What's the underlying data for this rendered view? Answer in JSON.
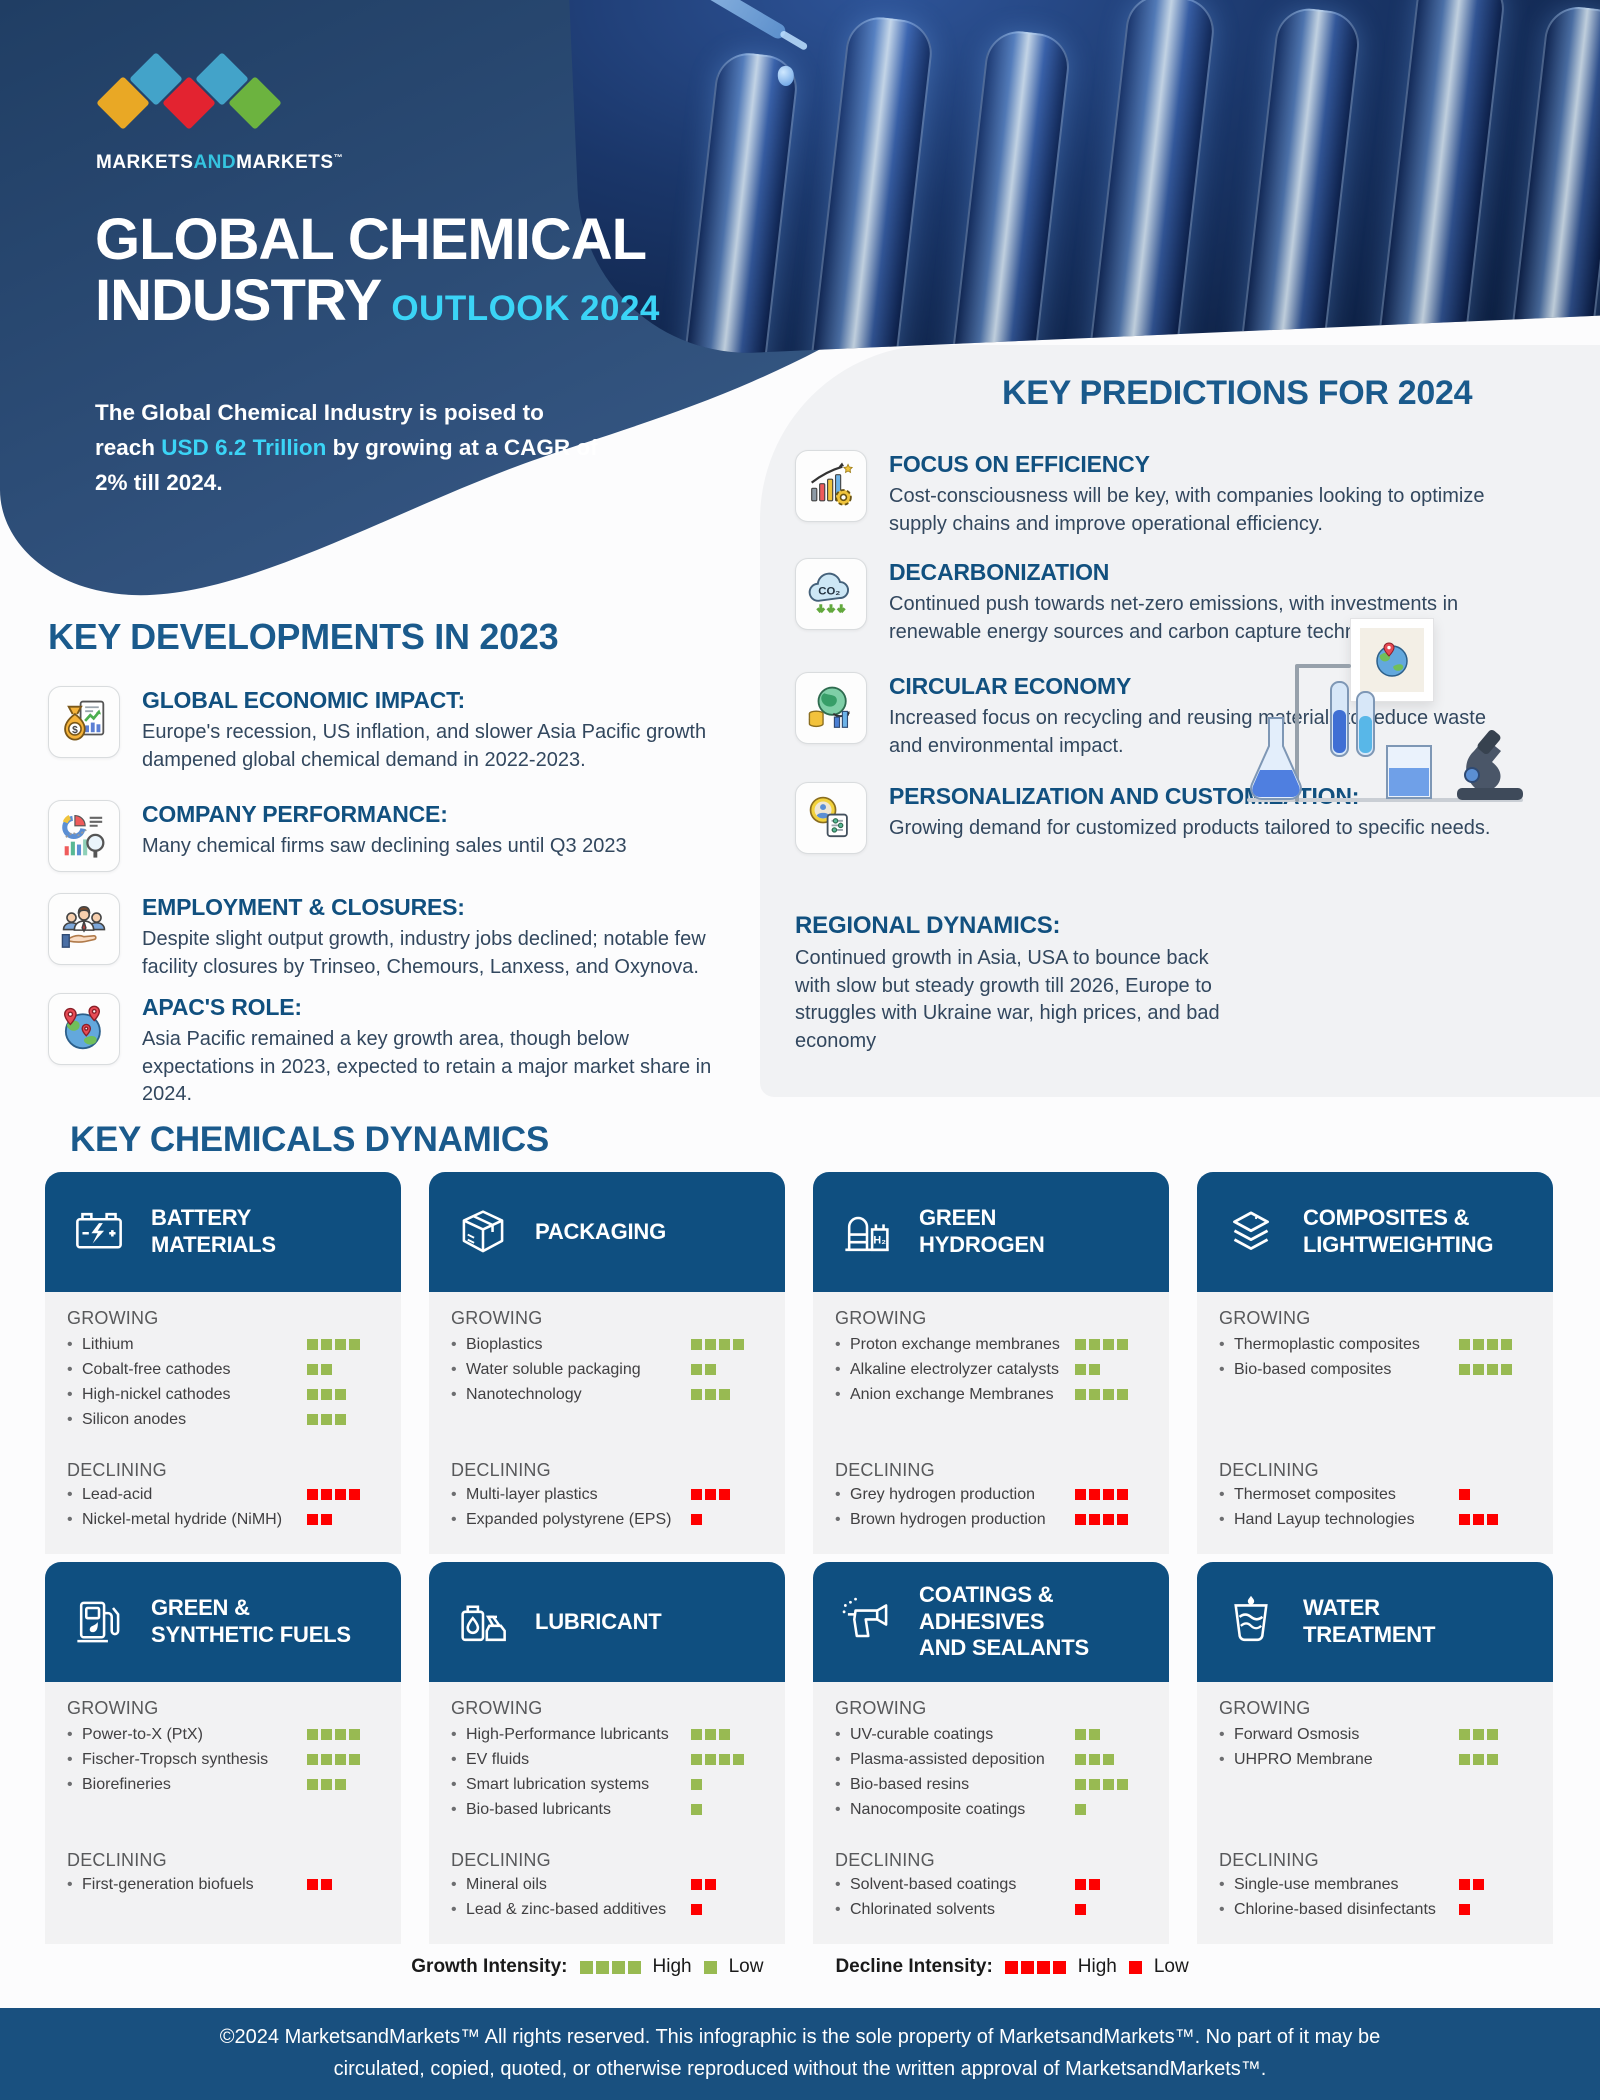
{
  "logo": {
    "part1": "MARKETS",
    "and": "AND",
    "part2": "MARKETS",
    "tm": "™"
  },
  "hero": {
    "title_line1": "GLOBAL CHEMICAL",
    "title_line2": "INDUSTRY",
    "title_suffix": "OUTLOOK 2024",
    "intro_pre": "The Global Chemical Industry is poised to reach ",
    "intro_highlight": "USD 6.2 Trillion",
    "intro_post": " by growing at a CAGR of 2% till 2024."
  },
  "developments": {
    "heading": "KEY DEVELOPMENTS IN 2023",
    "items": [
      {
        "icon": "money-bag-chart-icon",
        "title": "GLOBAL ECONOMIC IMPACT:",
        "text": "Europe's recession, US inflation, and slower Asia Pacific growth dampened global chemical demand in 2022-2023."
      },
      {
        "icon": "chart-magnifier-icon",
        "title": "COMPANY PERFORMANCE:",
        "text": "Many chemical firms saw declining sales until Q3 2023"
      },
      {
        "icon": "people-hand-icon",
        "title": "EMPLOYMENT & CLOSURES:",
        "text": "Despite slight output growth, industry jobs declined; notable few facility closures by Trinseo, Chemours, Lanxess, and Oxynova."
      },
      {
        "icon": "globe-pins-icon",
        "title": "APAC'S ROLE:",
        "text": "Asia Pacific remained a key growth area, though below expectations in 2023, expected to retain a major market share in 2024."
      }
    ]
  },
  "predictions": {
    "heading": "KEY PREDICTIONS FOR 2024",
    "items": [
      {
        "icon": "efficiency-gear-icon",
        "title": "FOCUS ON EFFICIENCY",
        "text": "Cost-consciousness will be key, with companies looking to optimize supply chains and improve operational efficiency."
      },
      {
        "icon": "co2-cloud-icon",
        "title": "DECARBONIZATION",
        "text": "Continued push towards net-zero emissions, with investments in renewable energy sources and carbon capture technologies."
      },
      {
        "icon": "globe-coins-icon",
        "title": "CIRCULAR ECONOMY",
        "text": "Increased focus on recycling and reusing materials to reduce waste and environmental impact."
      },
      {
        "icon": "person-settings-icon",
        "title": "PERSONALIZATION AND CUSTOMIZATION:",
        "text": "Growing demand for customized products tailored to specific needs."
      }
    ],
    "regional": {
      "title": "REGIONAL DYNAMICS:",
      "text": "Continued growth in Asia, USA to bounce back with slow but steady growth till 2026, Europe to struggles with Ukraine war, high prices, and bad economy"
    }
  },
  "dynamics": {
    "heading": "KEY CHEMICALS DYNAMICS",
    "growing_label": "GROWING",
    "declining_label": "DECLINING",
    "cards": [
      {
        "icon": "battery-icon",
        "title_lines": [
          "BATTERY",
          "MATERIALS"
        ],
        "growing": [
          {
            "label": "Lithium",
            "intensity": 4
          },
          {
            "label": "Cobalt-free cathodes",
            "intensity": 2
          },
          {
            "label": "High-nickel cathodes",
            "intensity": 3
          },
          {
            "label": "Silicon anodes",
            "intensity": 3
          }
        ],
        "declining": [
          {
            "label": "Lead-acid",
            "intensity": 4
          },
          {
            "label": "Nickel-metal hydride (NiMH)",
            "intensity": 2
          }
        ]
      },
      {
        "icon": "package-icon",
        "title_lines": [
          "PACKAGING"
        ],
        "growing": [
          {
            "label": "Bioplastics",
            "intensity": 4
          },
          {
            "label": "Water soluble packaging",
            "intensity": 2
          },
          {
            "label": "Nanotechnology",
            "intensity": 3
          }
        ],
        "declining": [
          {
            "label": "Multi-layer plastics",
            "intensity": 3
          },
          {
            "label": "Expanded polystyrene (EPS)",
            "intensity": 1
          }
        ]
      },
      {
        "icon": "hydrogen-plant-icon",
        "title_lines": [
          "GREEN",
          "HYDROGEN"
        ],
        "growing": [
          {
            "label": "Proton exchange membranes",
            "intensity": 4
          },
          {
            "label": "Alkaline electrolyzer catalysts",
            "intensity": 2
          },
          {
            "label": "Anion exchange Membranes",
            "intensity": 4
          }
        ],
        "declining": [
          {
            "label": "Grey hydrogen production",
            "intensity": 4
          },
          {
            "label": "Brown hydrogen production",
            "intensity": 4
          }
        ]
      },
      {
        "icon": "layers-icon",
        "title_lines": [
          "COMPOSITES &",
          "LIGHTWEIGHTING"
        ],
        "growing": [
          {
            "label": "Thermoplastic composites",
            "intensity": 4
          },
          {
            "label": "Bio-based composites",
            "intensity": 4
          }
        ],
        "declining": [
          {
            "label": "Thermoset composites",
            "intensity": 1
          },
          {
            "label": "Hand Layup technologies",
            "intensity": 3
          }
        ]
      },
      {
        "icon": "fuel-pump-icon",
        "title_lines": [
          "GREEN &",
          "SYNTHETIC FUELS"
        ],
        "growing": [
          {
            "label": "Power-to-X (PtX)",
            "intensity": 4
          },
          {
            "label": "Fischer-Tropsch synthesis",
            "intensity": 4
          },
          {
            "label": "Biorefineries",
            "intensity": 3
          }
        ],
        "declining": [
          {
            "label": "First-generation biofuels",
            "intensity": 2
          }
        ]
      },
      {
        "icon": "oil-can-icon",
        "title_lines": [
          "LUBRICANT"
        ],
        "growing": [
          {
            "label": "High-Performance lubricants",
            "intensity": 3
          },
          {
            "label": "EV fluids",
            "intensity": 4
          },
          {
            "label": "Smart lubrication systems",
            "intensity": 1
          },
          {
            "label": "Bio-based lubricants",
            "intensity": 1
          }
        ],
        "declining": [
          {
            "label": "Mineral oils",
            "intensity": 2
          },
          {
            "label": "Lead & zinc-based additives",
            "intensity": 1
          }
        ]
      },
      {
        "icon": "spray-gun-icon",
        "title_lines": [
          "COATINGS & ADHESIVES",
          "AND SEALANTS"
        ],
        "growing": [
          {
            "label": "UV-curable coatings",
            "intensity": 2
          },
          {
            "label": "Plasma-assisted deposition",
            "intensity": 3
          },
          {
            "label": "Bio-based resins",
            "intensity": 4
          },
          {
            "label": "Nanocomposite coatings",
            "intensity": 1
          }
        ],
        "declining": [
          {
            "label": "Solvent-based coatings",
            "intensity": 2
          },
          {
            "label": "Chlorinated solvents",
            "intensity": 1
          }
        ]
      },
      {
        "icon": "water-filter-icon",
        "title_lines": [
          "WATER",
          "TREATMENT"
        ],
        "growing": [
          {
            "label": "Forward Osmosis",
            "intensity": 3
          },
          {
            "label": "UHPRO Membrane",
            "intensity": 3
          }
        ],
        "declining": [
          {
            "label": "Single-use membranes",
            "intensity": 2
          },
          {
            "label": "Chlorine-based disinfectants",
            "intensity": 1
          }
        ]
      }
    ]
  },
  "legend": {
    "growth_label": "Growth Intensity:",
    "decline_label": "Decline Intensity:",
    "high_label": "High",
    "low_label": "Low",
    "high_count": 4,
    "low_count": 1
  },
  "footer": {
    "line1": "©2024 MarketsandMarkets™ All rights reserved. This infographic is the sole property of MarketsandMarkets™. No part of it may be",
    "line2": "circulated, copied, quoted, or otherwise reproduced without the written approval of MarketsandMarkets™."
  },
  "colors": {
    "accent_cyan": "#3BD4F6",
    "heading_blue": "#1A5A8C",
    "card_header_blue": "#0F4F80",
    "growth_green": "#98BA52",
    "decline_red": "#FE0000",
    "footer_blue": "#19507F",
    "hero_blue": "#2C4C77",
    "panel_gray": "#F1F2F4"
  }
}
